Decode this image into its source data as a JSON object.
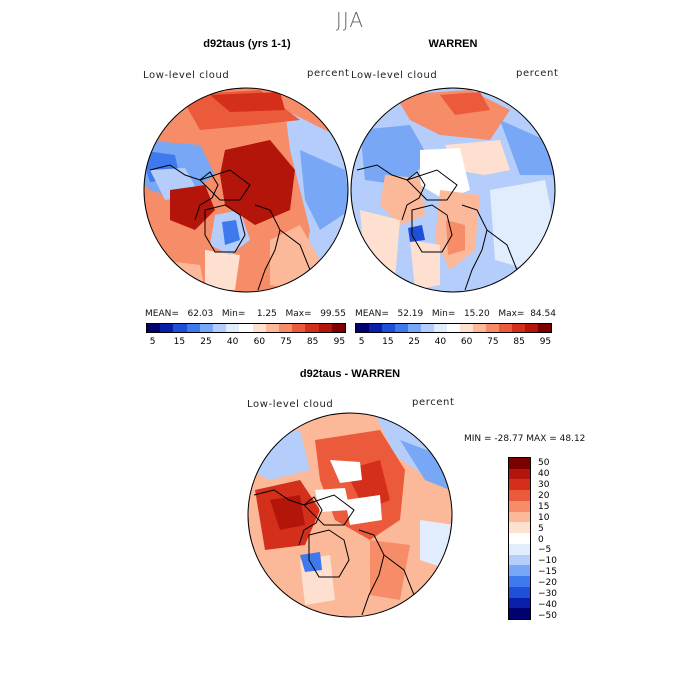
{
  "season_title": "JJA",
  "panels": [
    {
      "title": "d92taus (yrs 1-1)",
      "variable": "Low-level cloud",
      "units": "percent",
      "stats": {
        "mean_label": "MEAN=",
        "mean": "62.03",
        "min_label": "Min=",
        "min": "1.25",
        "max_label": "Max=",
        "max": "99.55"
      }
    },
    {
      "title": "WARREN",
      "variable": "Low-level cloud",
      "units": "percent",
      "stats": {
        "mean_label": "MEAN=",
        "mean": "52.19",
        "min_label": "Min=",
        "min": "15.20",
        "max_label": "Max=",
        "max": "84.54"
      }
    },
    {
      "title": "d92taus - WARREN",
      "variable": "Low-level cloud",
      "units": "percent",
      "range_text": "MIN = -28.77 MAX =  48.12"
    }
  ],
  "colorbar_abs": {
    "colors": [
      "#00006e",
      "#0a1fa8",
      "#1f4fd9",
      "#3f79ee",
      "#78a7f5",
      "#b4cdfa",
      "#e1ecfd",
      "#ffffff",
      "#fde0cf",
      "#fbb99a",
      "#f68c68",
      "#ea5a3b",
      "#d42f1a",
      "#b3150b",
      "#7d0000"
    ],
    "tick_labels": [
      "5",
      "15",
      "25",
      "40",
      "60",
      "75",
      "85",
      "95"
    ]
  },
  "colorbar_diff": {
    "colors": [
      "#7d0000",
      "#b3150b",
      "#d42f1a",
      "#ea5a3b",
      "#f68c68",
      "#fbb99a",
      "#fde0cf",
      "#ffffff",
      "#e1ecfd",
      "#b4cdfa",
      "#78a7f5",
      "#3f79ee",
      "#1f4fd9",
      "#0a1fa8",
      "#00006e"
    ],
    "tick_labels": [
      "50",
      "40",
      "30",
      "20",
      "15",
      "10",
      "5",
      "0",
      "−5",
      "−10",
      "−15",
      "−20",
      "−30",
      "−40",
      "−50"
    ]
  }
}
